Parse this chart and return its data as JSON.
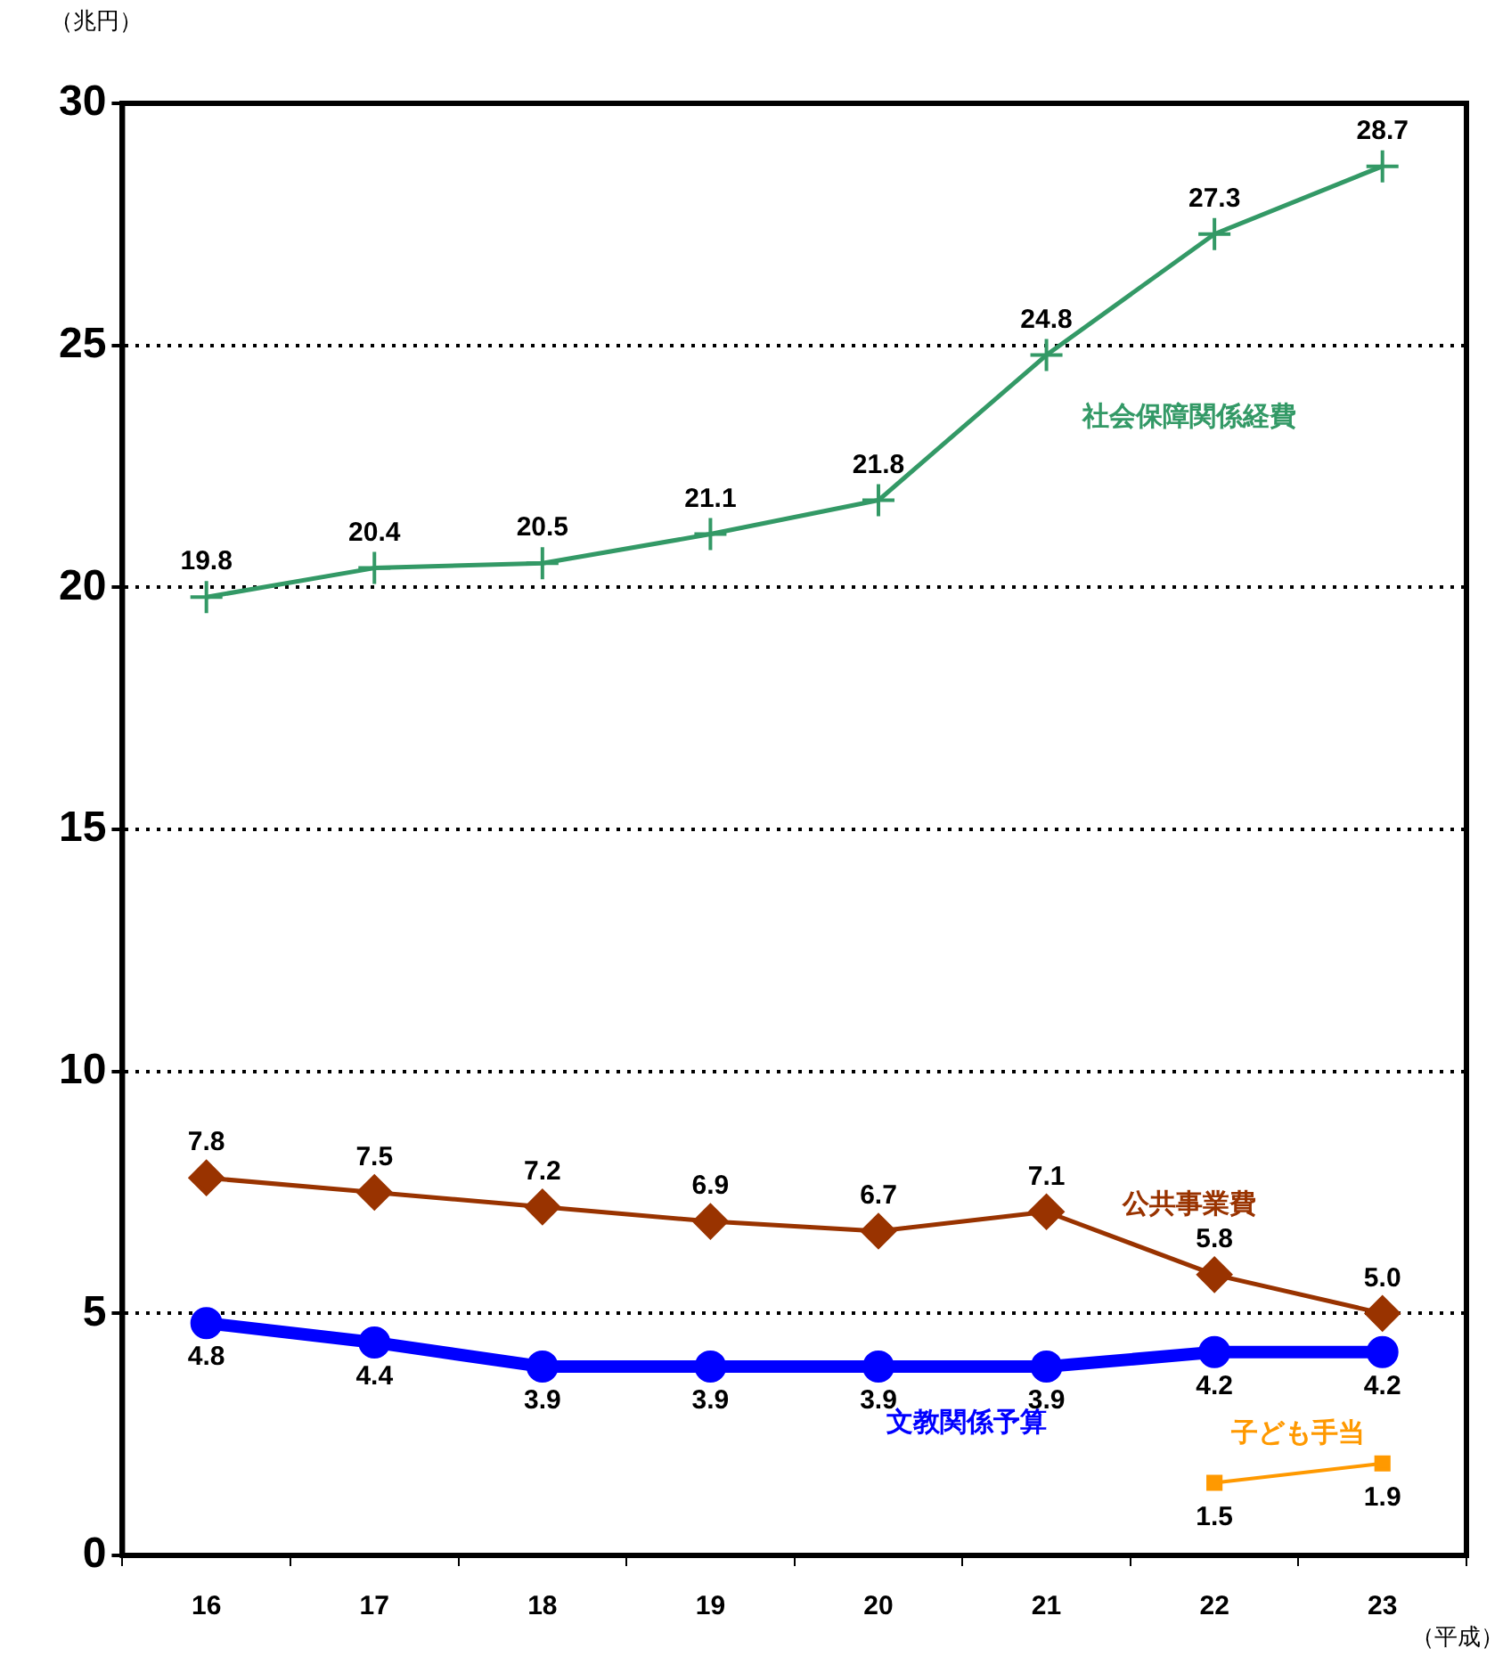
{
  "chart_data": {
    "type": "line",
    "ylabel": "（兆円）",
    "xlabel": "（平成）",
    "categories": [
      "16",
      "17",
      "18",
      "19",
      "20",
      "21",
      "22",
      "23"
    ],
    "series": [
      {
        "name": "社会保障関係経費",
        "color": "#339966",
        "marker": "cross",
        "values": [
          19.8,
          20.4,
          20.5,
          21.1,
          21.8,
          24.8,
          27.3,
          28.7
        ],
        "value_labels": [
          "19.8",
          "20.4",
          "20.5",
          "21.1",
          "21.8",
          "24.8",
          "27.3",
          "28.7"
        ]
      },
      {
        "name": "公共事業費",
        "color": "#993300",
        "marker": "diamond",
        "values": [
          7.8,
          7.5,
          7.2,
          6.9,
          6.7,
          7.1,
          5.8,
          5.0
        ],
        "value_labels": [
          "7.8",
          "7.5",
          "7.2",
          "6.9",
          "6.7",
          "7.1",
          "5.8",
          "5.0"
        ]
      },
      {
        "name": "文教関係予算",
        "color": "#0000ff",
        "marker": "circle",
        "values": [
          4.8,
          4.4,
          3.9,
          3.9,
          3.9,
          3.9,
          4.2,
          4.2
        ],
        "value_labels": [
          "4.8",
          "4.4",
          "3.9",
          "3.9",
          "3.9",
          "3.9",
          "4.2",
          "4.2"
        ]
      },
      {
        "name": "子ども手当",
        "color": "#ff9900",
        "marker": "square",
        "values": [
          null,
          null,
          null,
          null,
          null,
          null,
          1.5,
          1.9
        ],
        "value_labels": [
          null,
          null,
          null,
          null,
          null,
          null,
          "1.5",
          "1.9"
        ]
      }
    ],
    "ylim": [
      0,
      30
    ],
    "yticks": [
      0,
      5,
      10,
      15,
      20,
      25,
      30
    ],
    "grid": "y",
    "legend": false,
    "line_style": "solid"
  }
}
